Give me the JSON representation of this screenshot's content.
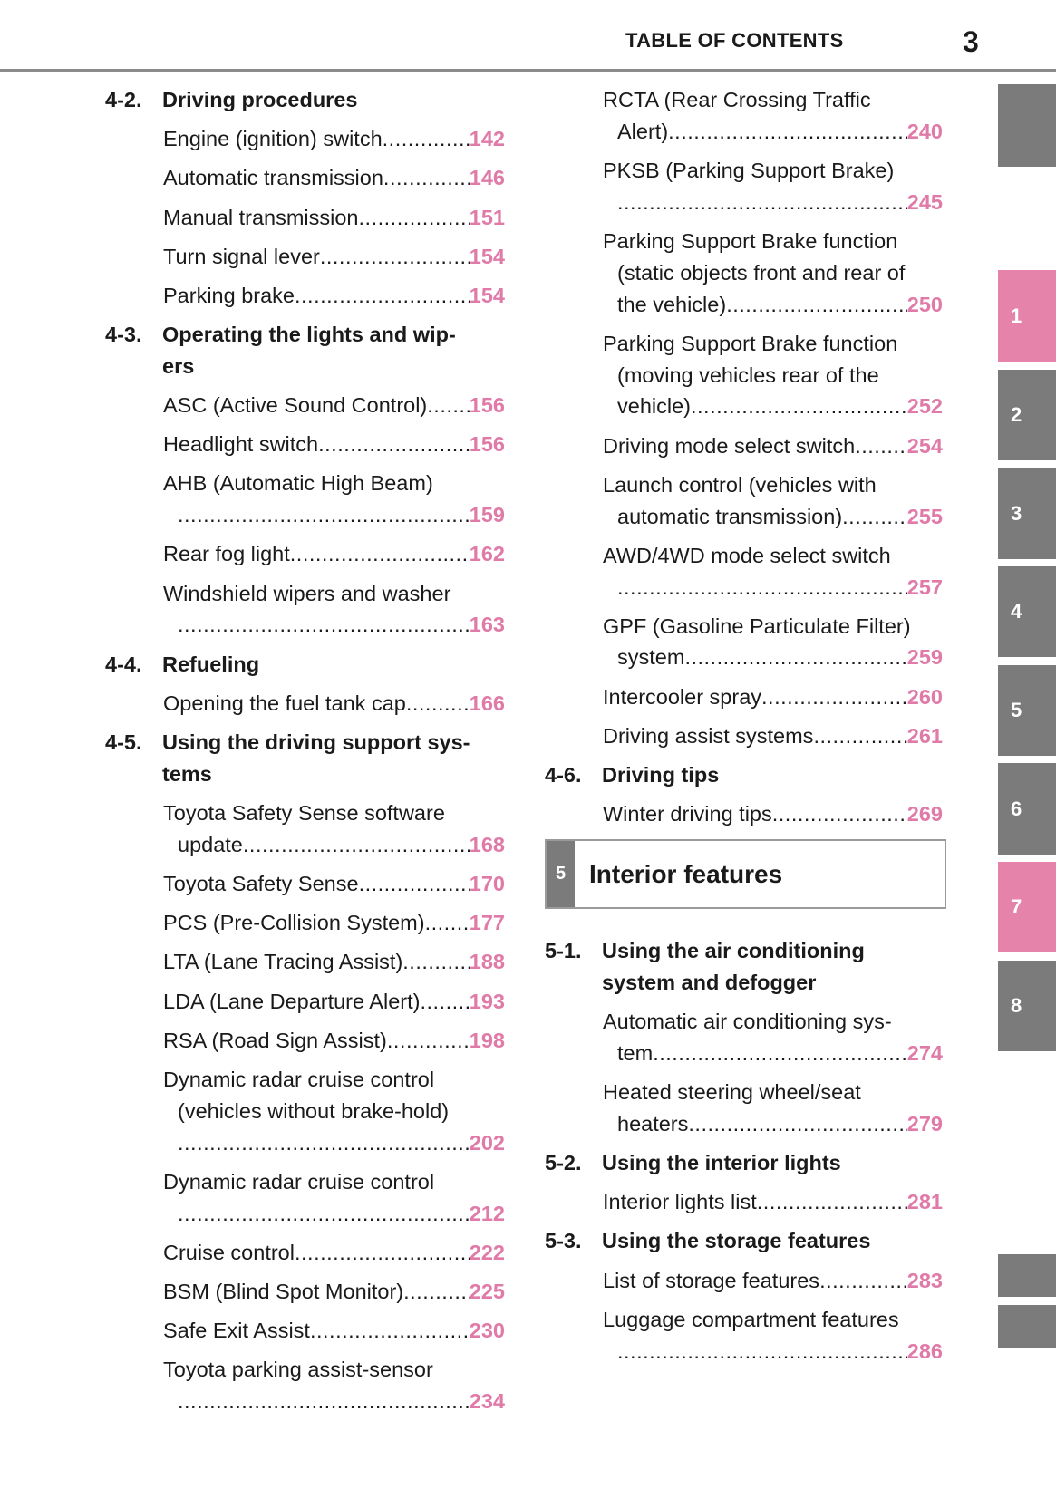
{
  "header": {
    "title": "TABLE OF CONTENTS",
    "page_number": "3"
  },
  "left": [
    {
      "type": "section",
      "num": "4-2.",
      "lines": [
        "Driving procedures"
      ]
    },
    {
      "type": "entry",
      "lines": [],
      "last": "Engine (ignition) switch",
      "page": "142"
    },
    {
      "type": "entry",
      "lines": [],
      "last": "Automatic transmission",
      "page": "146"
    },
    {
      "type": "entry",
      "lines": [],
      "last": "Manual transmission",
      "page": "151"
    },
    {
      "type": "entry",
      "lines": [],
      "last": "Turn signal lever ",
      "page": "154"
    },
    {
      "type": "entry",
      "lines": [],
      "last": "Parking brake",
      "page": "154"
    },
    {
      "type": "section",
      "num": "4-3.",
      "lines": [
        "Operating the lights and wip-",
        "ers"
      ]
    },
    {
      "type": "entry",
      "lines": [],
      "last": "ASC (Active Sound Control)",
      "page": "156"
    },
    {
      "type": "entry",
      "lines": [],
      "last": "Headlight switch",
      "page": "156"
    },
    {
      "type": "entry",
      "lines": [
        "AHB (Automatic High Beam)"
      ],
      "last": "",
      "page": "159"
    },
    {
      "type": "entry",
      "lines": [],
      "last": "Rear fog light ",
      "page": "162"
    },
    {
      "type": "entry",
      "lines": [
        "Windshield wipers and washer"
      ],
      "last": "",
      "page": "163"
    },
    {
      "type": "section",
      "num": "4-4.",
      "lines": [
        "Refueling"
      ]
    },
    {
      "type": "entry",
      "lines": [],
      "last": "Opening the fuel tank cap",
      "page": "166"
    },
    {
      "type": "section",
      "num": "4-5.",
      "lines": [
        "Using the driving support sys-",
        "tems"
      ]
    },
    {
      "type": "entry",
      "lines": [
        "Toyota Safety Sense software"
      ],
      "last": "update",
      "page": "168"
    },
    {
      "type": "entry",
      "lines": [],
      "last": "Toyota Safety Sense",
      "page": "170"
    },
    {
      "type": "entry",
      "lines": [],
      "last": "PCS (Pre-Collision System)",
      "page": "177"
    },
    {
      "type": "entry",
      "lines": [],
      "last": "LTA (Lane Tracing Assist) ",
      "page": "188"
    },
    {
      "type": "entry",
      "lines": [],
      "last": "LDA (Lane Departure Alert) ",
      "page": "193"
    },
    {
      "type": "entry",
      "lines": [],
      "last": "RSA (Road Sign Assist)",
      "page": "198"
    },
    {
      "type": "entry",
      "lines": [
        "Dynamic radar cruise control",
        "(vehicles without brake-hold)"
      ],
      "last": "",
      "page": "202"
    },
    {
      "type": "entry",
      "lines": [
        "Dynamic radar cruise control"
      ],
      "last": "",
      "page": "212"
    },
    {
      "type": "entry",
      "lines": [],
      "last": "Cruise control",
      "page": "222"
    },
    {
      "type": "entry",
      "lines": [],
      "last": "BSM (Blind Spot Monitor) ",
      "page": "225"
    },
    {
      "type": "entry",
      "lines": [],
      "last": "Safe Exit Assist",
      "page": "230"
    },
    {
      "type": "entry",
      "lines": [
        "Toyota parking assist-sensor"
      ],
      "last": "",
      "page": "234"
    }
  ],
  "right": [
    {
      "type": "entry",
      "lines": [
        "RCTA (Rear Crossing Traffic"
      ],
      "last": "Alert)",
      "page": "240"
    },
    {
      "type": "entry",
      "lines": [
        "PKSB (Parking Support Brake)"
      ],
      "last": "",
      "page": "245"
    },
    {
      "type": "entry",
      "lines": [
        "Parking Support Brake function",
        "(static objects front and rear of"
      ],
      "last": "the vehicle) ",
      "page": "250"
    },
    {
      "type": "entry",
      "lines": [
        "Parking Support Brake function",
        "(moving vehicles rear of the"
      ],
      "last": "vehicle) ",
      "page": "252"
    },
    {
      "type": "entry",
      "lines": [],
      "last": "Driving mode select switch ",
      "page": "254"
    },
    {
      "type": "entry",
      "lines": [
        "Launch control (vehicles with"
      ],
      "last": "automatic transmission)",
      "page": "255"
    },
    {
      "type": "entry",
      "lines": [
        "AWD/4WD mode select switch"
      ],
      "last": "",
      "page": "257"
    },
    {
      "type": "entry",
      "lines": [
        "GPF (Gasoline Particulate Filter)"
      ],
      "last": "system ",
      "page": "259"
    },
    {
      "type": "entry",
      "lines": [],
      "last": "Intercooler spray",
      "page": "260"
    },
    {
      "type": "entry",
      "lines": [],
      "last": "Driving assist systems ",
      "page": "261"
    },
    {
      "type": "section",
      "num": "4-6.",
      "lines": [
        "Driving tips"
      ]
    },
    {
      "type": "entry",
      "lines": [],
      "last": "Winter driving tips ",
      "page": "269"
    },
    {
      "type": "chapter",
      "num": "5",
      "title": "Interior features"
    },
    {
      "type": "section",
      "num": "5-1.",
      "lines": [
        "Using the air conditioning",
        "system and defogger"
      ]
    },
    {
      "type": "entry",
      "lines": [
        "Automatic air conditioning sys-"
      ],
      "last": "tem",
      "page": "274"
    },
    {
      "type": "entry",
      "lines": [
        "Heated steering wheel/seat"
      ],
      "last": "heaters",
      "page": "279"
    },
    {
      "type": "section",
      "num": "5-2.",
      "lines": [
        "Using the interior lights"
      ]
    },
    {
      "type": "entry",
      "lines": [],
      "last": "Interior lights list",
      "page": "281"
    },
    {
      "type": "section",
      "num": "5-3.",
      "lines": [
        "Using the storage features"
      ]
    },
    {
      "type": "entry",
      "lines": [],
      "last": "List of storage features ",
      "page": "283"
    },
    {
      "type": "entry",
      "lines": [
        "Luggage compartment features"
      ],
      "last": "",
      "page": "286"
    }
  ],
  "tabs": [
    {
      "label": "",
      "active": false
    },
    {
      "label": "1",
      "active": true
    },
    {
      "label": "2",
      "active": false
    },
    {
      "label": "3",
      "active": false
    },
    {
      "label": "4",
      "active": false
    },
    {
      "label": "5",
      "active": false
    },
    {
      "label": "6",
      "active": false
    },
    {
      "label": "7",
      "active": true
    },
    {
      "label": "8",
      "active": false
    },
    {
      "label": "",
      "active": false
    },
    {
      "label": "",
      "active": false
    }
  ],
  "colors": {
    "page_number": "#e07aa8",
    "tab_active": "#e583ab",
    "tab": "#7b7b7b"
  }
}
